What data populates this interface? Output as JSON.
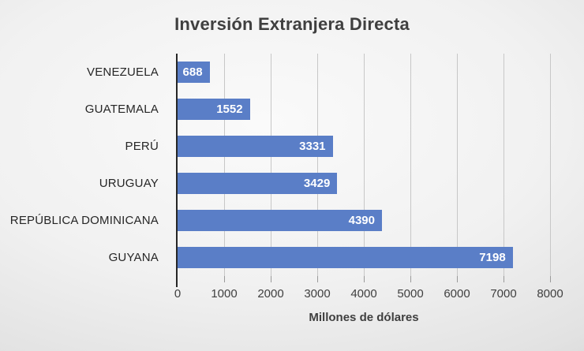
{
  "title": "Inversión Extranjera Directa",
  "chart_data": {
    "type": "bar",
    "orientation": "horizontal",
    "title": "Inversión Extranjera Directa",
    "categories": [
      "VENEZUELA",
      "GUATEMALA",
      "PERÚ",
      "URUGUAY",
      "REPÚBLICA DOMINICANA",
      "GUYANA"
    ],
    "values": [
      688,
      1552,
      3331,
      3429,
      4390,
      7198
    ],
    "value_labels": [
      "688",
      "1552",
      "3331",
      "3429",
      "4390",
      "7198"
    ],
    "xlabel": "Millones de dólares",
    "ylabel": "",
    "xlim": [
      0,
      8000
    ],
    "xticks": [
      0,
      1000,
      2000,
      3000,
      4000,
      5000,
      6000,
      7000,
      8000
    ],
    "xtick_labels": [
      "0",
      "1000",
      "2000",
      "3000",
      "4000",
      "5000",
      "6000",
      "7000",
      "8000"
    ],
    "grid": true,
    "legend": "none",
    "colors": {
      "bar_fill": "#5a7ec7",
      "bar_value_text": "#ffffff",
      "axis_line": "#262626",
      "gridline": "#c7c7c7",
      "text": "#3f3f3f",
      "background_center": "#fafafa",
      "background_edge": "#b4b4b4"
    }
  }
}
